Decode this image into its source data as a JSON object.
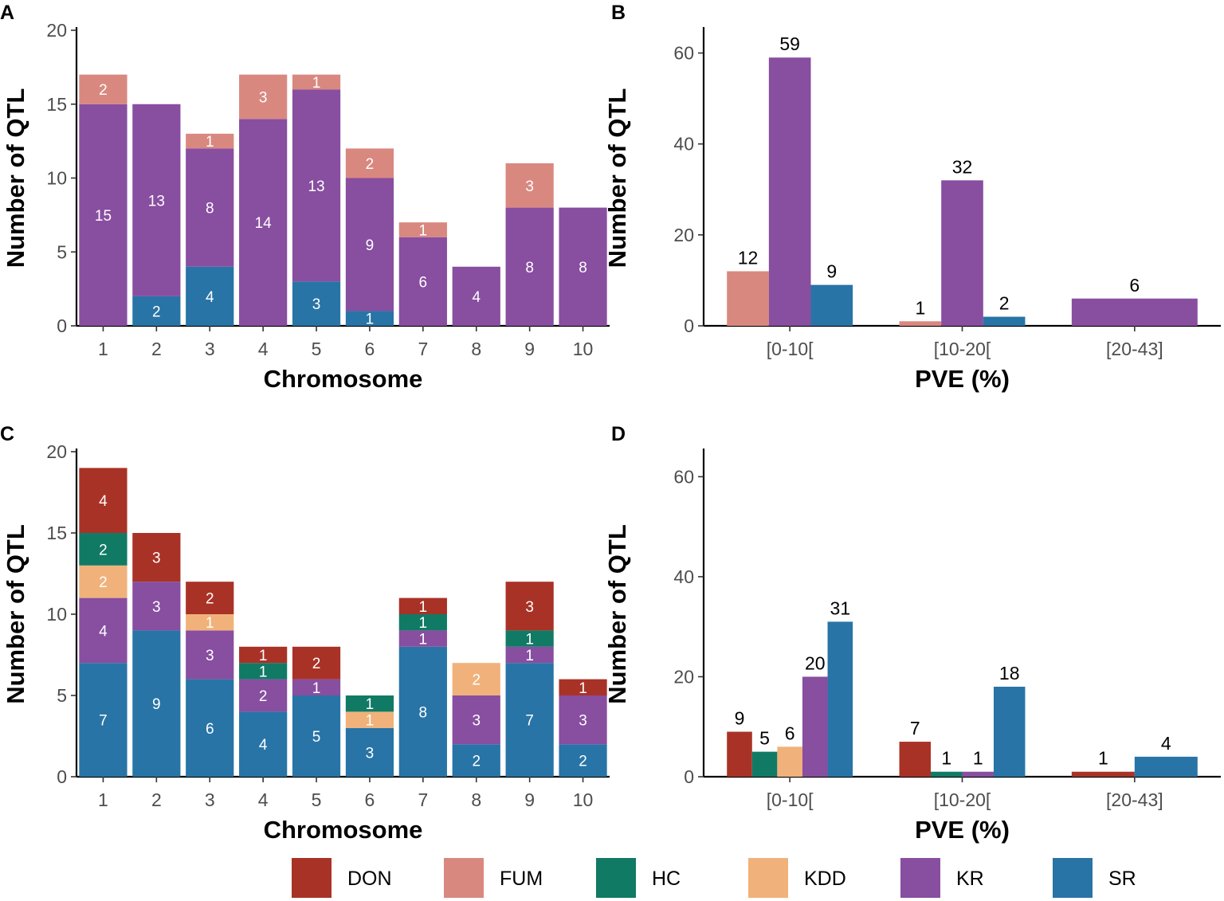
{
  "colors": {
    "DON": "#a93226",
    "FUM": "#d98880",
    "HC": "#117a65",
    "KDD": "#f0b27a",
    "KR": "#884ea0",
    "SR": "#2874a6"
  },
  "legend": [
    "DON",
    "FUM",
    "HC",
    "KDD",
    "KR",
    "SR"
  ],
  "chart_data": [
    {
      "panel": "A",
      "type": "bar",
      "stacked": true,
      "xlabel": "Chromosome",
      "ylabel": "Number of QTL",
      "ylim": [
        0,
        20
      ],
      "yticks": [
        0,
        5,
        10,
        15,
        20
      ],
      "categories": [
        "1",
        "2",
        "3",
        "4",
        "5",
        "6",
        "7",
        "8",
        "9",
        "10"
      ],
      "series": [
        {
          "name": "SR",
          "values": [
            0,
            2,
            4,
            0,
            3,
            1,
            0,
            0,
            0,
            0
          ]
        },
        {
          "name": "KR",
          "values": [
            15,
            13,
            8,
            14,
            13,
            9,
            6,
            4,
            8,
            8
          ]
        },
        {
          "name": "FUM",
          "values": [
            2,
            0,
            1,
            3,
            1,
            2,
            1,
            0,
            3,
            0
          ]
        }
      ]
    },
    {
      "panel": "B",
      "type": "bar",
      "stacked": false,
      "xlabel": "PVE (%)",
      "ylabel": "Number of QTL",
      "ylim": [
        0,
        65
      ],
      "yticks": [
        0,
        20,
        40,
        60
      ],
      "categories": [
        "[0-10[",
        "[10-20[",
        "[20-43]"
      ],
      "groups": [
        [
          {
            "name": "FUM",
            "value": 12
          },
          {
            "name": "KR",
            "value": 59
          },
          {
            "name": "SR",
            "value": 9
          }
        ],
        [
          {
            "name": "FUM",
            "value": 1
          },
          {
            "name": "KR",
            "value": 32
          },
          {
            "name": "SR",
            "value": 2
          }
        ],
        [
          {
            "name": "KR",
            "value": 6
          }
        ]
      ]
    },
    {
      "panel": "C",
      "type": "bar",
      "stacked": true,
      "xlabel": "Chromosome",
      "ylabel": "Number of QTL",
      "ylim": [
        0,
        20
      ],
      "yticks": [
        0,
        5,
        10,
        15,
        20
      ],
      "categories": [
        "1",
        "2",
        "3",
        "4",
        "5",
        "6",
        "7",
        "8",
        "9",
        "10"
      ],
      "series": [
        {
          "name": "SR",
          "values": [
            7,
            9,
            6,
            4,
            5,
            3,
            8,
            2,
            7,
            2
          ]
        },
        {
          "name": "KR",
          "values": [
            4,
            3,
            3,
            2,
            1,
            0,
            1,
            3,
            1,
            3
          ]
        },
        {
          "name": "KDD",
          "values": [
            2,
            0,
            1,
            0,
            0,
            1,
            0,
            2,
            0,
            0
          ]
        },
        {
          "name": "HC",
          "values": [
            2,
            0,
            0,
            1,
            0,
            1,
            1,
            0,
            1,
            0
          ]
        },
        {
          "name": "DON",
          "values": [
            4,
            3,
            2,
            1,
            2,
            0,
            1,
            0,
            3,
            1
          ]
        }
      ]
    },
    {
      "panel": "D",
      "type": "bar",
      "stacked": false,
      "xlabel": "PVE (%)",
      "ylabel": "Number of QTL",
      "ylim": [
        0,
        65
      ],
      "yticks": [
        0,
        20,
        40,
        60
      ],
      "categories": [
        "[0-10[",
        "[10-20[",
        "[20-43]"
      ],
      "groups": [
        [
          {
            "name": "DON",
            "value": 9
          },
          {
            "name": "HC",
            "value": 5
          },
          {
            "name": "KDD",
            "value": 6
          },
          {
            "name": "KR",
            "value": 20
          },
          {
            "name": "SR",
            "value": 31
          }
        ],
        [
          {
            "name": "DON",
            "value": 7
          },
          {
            "name": "HC",
            "value": 1
          },
          {
            "name": "KR",
            "value": 1
          },
          {
            "name": "SR",
            "value": 18
          }
        ],
        [
          {
            "name": "DON",
            "value": 1
          },
          {
            "name": "SR",
            "value": 4
          }
        ]
      ]
    }
  ]
}
